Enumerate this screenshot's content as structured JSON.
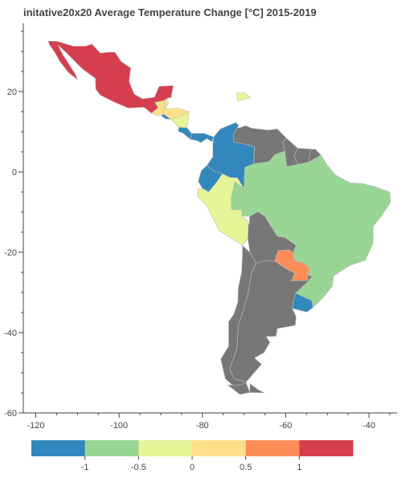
{
  "title": "initative20x20 Average Temperature Change [°C] 2015-2019",
  "map": {
    "x_ticks": [
      "-120",
      "-100",
      "-80",
      "-60",
      "-40"
    ],
    "y_ticks": [
      "20",
      "0",
      "-20",
      "-40",
      "-60"
    ],
    "x_range": [
      -123,
      -28
    ],
    "y_range": [
      -60,
      37
    ],
    "no_data_color": "#777777"
  },
  "colorbar": {
    "colors": [
      "#3288bd",
      "#99d594",
      "#e6f598",
      "#fee08b",
      "#fc8d59",
      "#d53e4f"
    ],
    "range": [
      -1.5,
      1.5
    ],
    "tick_labels": [
      "-1",
      "-0.5",
      "0",
      "0.5",
      "1"
    ],
    "tick_values": [
      -1,
      -0.5,
      0,
      0.5,
      1
    ]
  },
  "regions": [
    {
      "name": "Mexico",
      "value": 1.4
    },
    {
      "name": "Guatemala",
      "value": 0.1
    },
    {
      "name": "Belize",
      "value": 0.1
    },
    {
      "name": "Honduras",
      "value": 0.1
    },
    {
      "name": "El Salvador",
      "value": -1.2
    },
    {
      "name": "Nicaragua",
      "value": -0.3
    },
    {
      "name": "Costa Rica",
      "value": -1.2
    },
    {
      "name": "Panama",
      "value": -1.2
    },
    {
      "name": "Dominican Republic",
      "value": -0.3
    },
    {
      "name": "Colombia",
      "value": -1.2
    },
    {
      "name": "Ecuador",
      "value": -1.2
    },
    {
      "name": "Peru",
      "value": -0.3
    },
    {
      "name": "Brazil",
      "value": -0.8
    },
    {
      "name": "Paraguay",
      "value": 0.6
    },
    {
      "name": "Uruguay",
      "value": -1.2
    },
    {
      "name": "Venezuela",
      "value": null
    },
    {
      "name": "Guyana",
      "value": null
    },
    {
      "name": "Suriname",
      "value": null
    },
    {
      "name": "French Guiana",
      "value": null
    },
    {
      "name": "Bolivia",
      "value": null
    },
    {
      "name": "Chile",
      "value": null
    },
    {
      "name": "Argentina",
      "value": null
    }
  ]
}
